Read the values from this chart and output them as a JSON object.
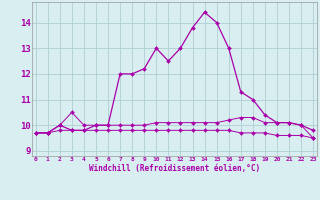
{
  "xlabel": "Windchill (Refroidissement éolien,°C)",
  "background_color": "#d8eef0",
  "grid_color": "#b0cfd4",
  "line_color": "#aa00aa",
  "x_all": [
    0,
    1,
    2,
    3,
    4,
    5,
    6,
    7,
    8,
    9,
    10,
    11,
    12,
    13,
    14,
    15,
    16,
    17,
    18,
    19,
    20,
    21,
    22,
    23
  ],
  "ylim": [
    8.8,
    14.8
  ],
  "xlim": [
    -0.3,
    23.3
  ],
  "yticks": [
    9,
    10,
    11,
    12,
    13,
    14
  ],
  "series": {
    "line1": [
      9.7,
      9.7,
      10.0,
      9.8,
      9.8,
      10.0,
      10.0,
      12.0,
      12.0,
      12.2,
      13.0,
      12.5,
      13.0,
      13.8,
      14.4,
      14.0,
      13.0,
      11.3,
      11.0,
      10.4,
      10.1,
      10.1,
      10.0,
      9.8
    ],
    "line2": [
      9.7,
      9.7,
      10.0,
      10.5,
      10.0,
      10.0,
      10.0,
      10.0,
      10.0,
      10.0,
      10.1,
      10.1,
      10.1,
      10.1,
      10.1,
      10.1,
      10.2,
      10.3,
      10.3,
      10.1,
      10.1,
      10.1,
      10.0,
      9.5
    ],
    "line3": [
      9.7,
      9.7,
      9.8,
      9.8,
      9.8,
      9.8,
      9.8,
      9.8,
      9.8,
      9.8,
      9.8,
      9.8,
      9.8,
      9.8,
      9.8,
      9.8,
      9.8,
      9.7,
      9.7,
      9.7,
      9.6,
      9.6,
      9.6,
      9.5
    ]
  }
}
